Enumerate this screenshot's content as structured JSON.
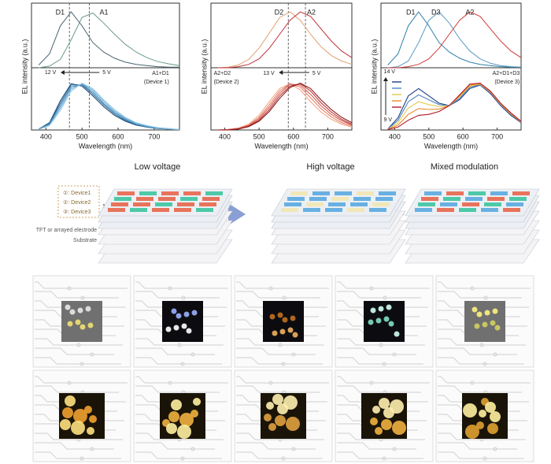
{
  "chart_data": [
    {
      "type": "line",
      "ylabel": "EL intensity (a.u.)",
      "xlabel": "Wavelength (nm)",
      "x": [
        380,
        410,
        440,
        470,
        500,
        530,
        560,
        590,
        620,
        650,
        680,
        710,
        740,
        770
      ],
      "xlim": [
        360,
        770
      ],
      "xticks": [
        400,
        500,
        600,
        700
      ],
      "top": {
        "ylim": [
          0,
          1.1
        ],
        "peaks": [
          465,
          520
        ],
        "series": [
          {
            "name": "D1",
            "color": "#4a6670",
            "values": [
              0.05,
              0.25,
              0.75,
              1.0,
              0.75,
              0.45,
              0.28,
              0.17,
              0.1,
              0.06,
              0.04,
              0.02,
              0.01,
              0.01
            ]
          },
          {
            "name": "A1",
            "color": "#6a9a86",
            "values": [
              0.0,
              0.03,
              0.15,
              0.5,
              0.9,
              0.98,
              0.8,
              0.6,
              0.42,
              0.28,
              0.18,
              0.11,
              0.07,
              0.04
            ]
          }
        ]
      },
      "bottom": {
        "ylim": [
          0,
          1.05
        ],
        "annotations": [
          "12 V",
          "5 V",
          "A1+D1",
          "(Device 1)"
        ],
        "series": [
          {
            "color": "#1f4e79",
            "values": [
              0.02,
              0.15,
              0.6,
              0.95,
              0.9,
              0.7,
              0.48,
              0.3,
              0.18,
              0.1,
              0.06,
              0.03,
              0.02,
              0.01
            ]
          },
          {
            "color": "#2f6f9f",
            "values": [
              0.02,
              0.13,
              0.55,
              0.92,
              0.93,
              0.74,
              0.52,
              0.33,
              0.2,
              0.11,
              0.06,
              0.03,
              0.02,
              0.01
            ]
          },
          {
            "color": "#4a8fbf",
            "values": [
              0.02,
              0.12,
              0.5,
              0.88,
              0.94,
              0.78,
              0.55,
              0.36,
              0.22,
              0.12,
              0.07,
              0.04,
              0.02,
              0.01
            ]
          },
          {
            "color": "#6aaed6",
            "values": [
              0.01,
              0.1,
              0.45,
              0.84,
              0.95,
              0.82,
              0.59,
              0.39,
              0.24,
              0.14,
              0.08,
              0.04,
              0.02,
              0.01
            ]
          },
          {
            "color": "#9bcbe6",
            "values": [
              0.01,
              0.09,
              0.4,
              0.8,
              0.96,
              0.85,
              0.62,
              0.42,
              0.26,
              0.15,
              0.09,
              0.05,
              0.03,
              0.01
            ]
          }
        ]
      }
    },
    {
      "type": "line",
      "ylabel": "EL intensity (a.u.)",
      "xlabel": "Wavelength (nm)",
      "x": [
        380,
        410,
        440,
        470,
        500,
        530,
        560,
        590,
        620,
        650,
        680,
        710,
        740,
        770
      ],
      "xlim": [
        360,
        770
      ],
      "xticks": [
        400,
        500,
        600,
        700
      ],
      "top": {
        "ylim": [
          0,
          1.1
        ],
        "peaks": [
          585,
          635
        ],
        "series": [
          {
            "name": "D2",
            "color": "#e0a070",
            "values": [
              0,
              0.01,
              0.05,
              0.15,
              0.35,
              0.62,
              0.9,
              1.0,
              0.85,
              0.6,
              0.38,
              0.22,
              0.12,
              0.06
            ]
          },
          {
            "name": "A2",
            "color": "#c0303a",
            "values": [
              0,
              0,
              0.02,
              0.06,
              0.16,
              0.35,
              0.6,
              0.85,
              1.0,
              0.92,
              0.7,
              0.48,
              0.3,
              0.18
            ]
          }
        ]
      },
      "bottom": {
        "ylim": [
          0,
          1.05
        ],
        "annotations": [
          "13 V",
          "5 V",
          "A2+D2",
          "(Device 2)"
        ],
        "series": [
          {
            "color": "#f4a582",
            "values": [
              0,
              0.01,
              0.04,
              0.12,
              0.3,
              0.58,
              0.85,
              0.95,
              0.82,
              0.58,
              0.37,
              0.22,
              0.12,
              0.06
            ]
          },
          {
            "color": "#e6806a",
            "values": [
              0,
              0.01,
              0.03,
              0.1,
              0.26,
              0.52,
              0.8,
              0.95,
              0.88,
              0.66,
              0.44,
              0.27,
              0.15,
              0.08
            ]
          },
          {
            "color": "#d65a50",
            "values": [
              0,
              0.01,
              0.03,
              0.09,
              0.23,
              0.47,
              0.75,
              0.94,
              0.92,
              0.73,
              0.5,
              0.32,
              0.19,
              0.1
            ]
          },
          {
            "color": "#b8383a",
            "values": [
              0,
              0,
              0.02,
              0.08,
              0.2,
              0.42,
              0.7,
              0.9,
              0.95,
              0.8,
              0.56,
              0.37,
              0.22,
              0.12
            ]
          },
          {
            "color": "#8b1a1a",
            "values": [
              0,
              0,
              0.02,
              0.07,
              0.18,
              0.38,
              0.65,
              0.87,
              0.96,
              0.85,
              0.62,
              0.42,
              0.26,
              0.15
            ]
          }
        ]
      }
    },
    {
      "type": "line",
      "ylabel": "EL intensity (a.u.)",
      "xlabel": "Wavelength (nm)",
      "x": [
        380,
        410,
        440,
        470,
        500,
        530,
        560,
        590,
        620,
        650,
        680,
        710,
        740,
        770
      ],
      "xlim": [
        360,
        770
      ],
      "xticks": [
        400,
        500,
        600,
        700
      ],
      "top": {
        "ylim": [
          0,
          1.1
        ],
        "peaks": [],
        "series": [
          {
            "name": "D1",
            "color": "#2e7fa8",
            "values": [
              0.05,
              0.25,
              0.75,
              1.0,
              0.75,
              0.45,
              0.28,
              0.17,
              0.1,
              0.06,
              0.04,
              0.02,
              0.01,
              0.01
            ]
          },
          {
            "name": "D3",
            "color": "#5c9bc4",
            "values": [
              0,
              0.02,
              0.12,
              0.45,
              0.85,
              1.0,
              0.8,
              0.52,
              0.3,
              0.16,
              0.08,
              0.04,
              0.02,
              0.01
            ]
          },
          {
            "name": "A2",
            "color": "#d23a3a",
            "values": [
              0,
              0,
              0.02,
              0.06,
              0.16,
              0.35,
              0.6,
              0.85,
              1.0,
              0.92,
              0.7,
              0.48,
              0.3,
              0.18
            ]
          }
        ]
      },
      "bottom": {
        "ylim": [
          0,
          1.05
        ],
        "annotations": [
          "14 V",
          "9 V",
          "A2+D1+D3",
          "(Device 3)"
        ],
        "series": [
          {
            "color": "#1f3c88",
            "values": [
              0.02,
              0.25,
              0.7,
              0.85,
              0.7,
              0.55,
              0.5,
              0.62,
              0.85,
              0.92,
              0.75,
              0.5,
              0.3,
              0.15
            ]
          },
          {
            "color": "#4f86c0",
            "values": [
              0.02,
              0.2,
              0.58,
              0.72,
              0.62,
              0.52,
              0.5,
              0.65,
              0.88,
              0.93,
              0.77,
              0.52,
              0.32,
              0.16
            ]
          },
          {
            "color": "#e8c84a",
            "values": [
              0.01,
              0.15,
              0.45,
              0.58,
              0.52,
              0.48,
              0.5,
              0.68,
              0.9,
              0.94,
              0.78,
              0.53,
              0.33,
              0.17
            ]
          },
          {
            "color": "#e98a2c",
            "values": [
              0.01,
              0.1,
              0.32,
              0.44,
              0.42,
              0.43,
              0.5,
              0.7,
              0.92,
              0.95,
              0.79,
              0.54,
              0.34,
              0.17
            ]
          },
          {
            "color": "#b2182b",
            "values": [
              0.01,
              0.06,
              0.2,
              0.3,
              0.32,
              0.38,
              0.5,
              0.72,
              0.94,
              0.96,
              0.8,
              0.55,
              0.35,
              0.18
            ]
          }
        ]
      }
    }
  ],
  "schematic": {
    "titles": [
      "Low voltage",
      "High voltage",
      "Mixed modulation"
    ],
    "legend": [
      "①: Device1",
      "②: Device2",
      "③: Device3"
    ],
    "layer_numbers": [
      "1",
      "2",
      "3"
    ],
    "layers": [
      "TFT or arrayed electrode",
      "Substrate"
    ]
  }
}
